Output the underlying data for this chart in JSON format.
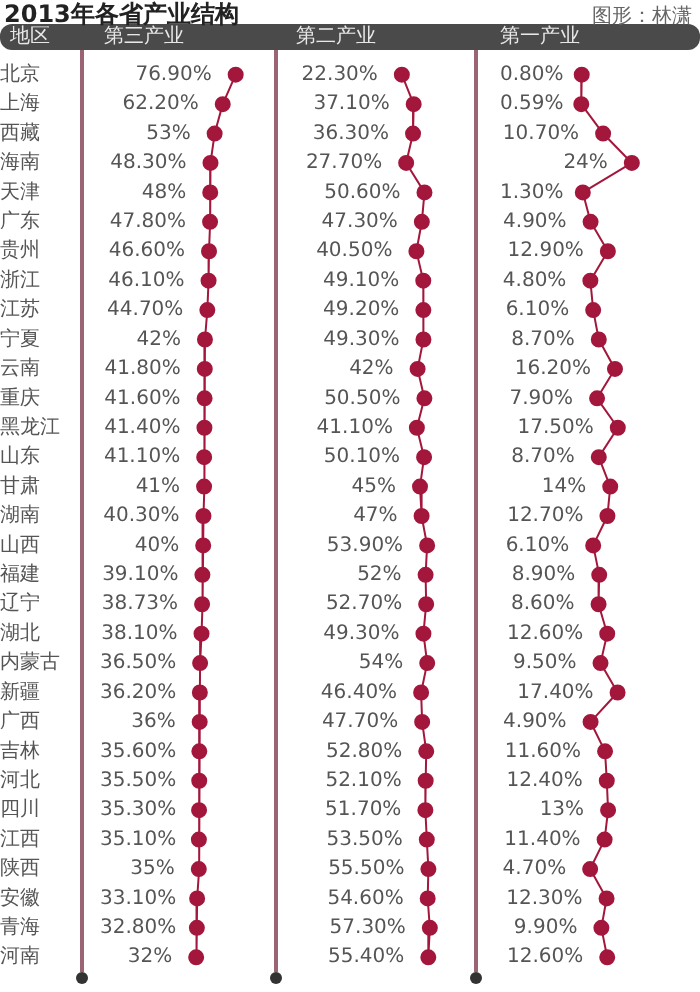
{
  "chart_data": [
    {
      "type": "line",
      "orientation": "horizontal",
      "title": "2013年各省产业结构",
      "ylabel": "地区",
      "xlabel": "第三产业",
      "tick_labels": "y",
      "marker": "circle",
      "color": "#a3173c",
      "categories": [
        "北京",
        "上海",
        "西藏",
        "海南",
        "天津",
        "广东",
        "贵州",
        "浙江",
        "江苏",
        "宁夏",
        "云南",
        "重庆",
        "黑龙江",
        "山东",
        "甘肃",
        "湖南",
        "山西",
        "福建",
        "辽宁",
        "湖北",
        "内蒙古",
        "新疆",
        "广西",
        "吉林",
        "河北",
        "四川",
        "江西",
        "陕西",
        "安徽",
        "青海",
        "河南"
      ],
      "values": [
        76.9,
        62.2,
        53,
        48.3,
        48,
        47.8,
        46.6,
        46.1,
        44.7,
        42,
        41.8,
        41.6,
        41.4,
        41.1,
        41,
        40.3,
        40,
        39.1,
        38.73,
        38.1,
        36.5,
        36.2,
        36,
        35.6,
        35.5,
        35.3,
        35.1,
        35,
        33.1,
        32.8,
        32
      ],
      "value_labels": [
        "76.90%",
        "62.20%",
        "53%",
        "48.30%",
        "48%",
        "47.80%",
        "46.60%",
        "46.10%",
        "44.70%",
        "42%",
        "41.80%",
        "41.60%",
        "41.40%",
        "41.10%",
        "41%",
        "40.30%",
        "40%",
        "39.10%",
        "38.73%",
        "38.10%",
        "36.50%",
        "36.20%",
        "36%",
        "35.60%",
        "35.50%",
        "35.30%",
        "35.10%",
        "35%",
        "33.10%",
        "32.80%",
        "32%"
      ]
    },
    {
      "type": "line",
      "orientation": "horizontal",
      "xlabel": "第二产业",
      "tick_labels": false,
      "marker": "circle",
      "color": "#a3173c",
      "categories": [
        null,
        null,
        null,
        null,
        null,
        null,
        null,
        null,
        null,
        null,
        null,
        null,
        null,
        null,
        null,
        null,
        null,
        null,
        null,
        null,
        null,
        null,
        null,
        null,
        null,
        null,
        null,
        null,
        null,
        null,
        null
      ],
      "values": [
        22.3,
        37.1,
        36.3,
        27.7,
        50.6,
        47.3,
        40.5,
        49.1,
        49.2,
        49.3,
        42,
        50.5,
        41.1,
        50.1,
        45,
        47,
        53.9,
        52,
        52.7,
        49.3,
        54,
        46.4,
        47.7,
        52.8,
        52.1,
        51.7,
        53.5,
        55.5,
        54.6,
        57.3,
        55.4
      ],
      "value_labels": [
        "22.30%",
        "37.10%",
        "36.30%",
        "27.70%",
        "50.60%",
        "47.30%",
        "40.50%",
        "49.10%",
        "49.20%",
        "49.30%",
        "42%",
        "50.50%",
        "41.10%",
        "50.10%",
        "45%",
        "47%",
        "53.90%",
        "52%",
        "52.70%",
        "49.30%",
        "54%",
        "46.40%",
        "47.70%",
        "52.80%",
        "52.10%",
        "51.70%",
        "53.50%",
        "55.50%",
        "54.60%",
        "57.30%",
        "55.40%"
      ]
    },
    {
      "type": "line",
      "orientation": "horizontal",
      "xlabel": "第一产业",
      "tick_labels": false,
      "marker": "circle",
      "color": "#a3173c",
      "annotations": [
        "图形：林潇"
      ],
      "categories": [
        null,
        null,
        null,
        null,
        null,
        null,
        null,
        null,
        null,
        null,
        null,
        null,
        null,
        null,
        null,
        null,
        null,
        null,
        null,
        null,
        null,
        null,
        null,
        null,
        null,
        null,
        null,
        null,
        null,
        null,
        null
      ],
      "values": [
        0.8,
        0.59,
        10.7,
        24,
        1.3,
        4.9,
        12.9,
        4.8,
        6.1,
        8.7,
        16.2,
        7.9,
        17.5,
        8.7,
        14,
        12.7,
        6.1,
        8.9,
        8.6,
        12.6,
        9.5,
        17.4,
        4.9,
        11.6,
        12.4,
        13,
        11.4,
        4.7,
        12.3,
        9.9,
        12.6
      ],
      "value_labels": [
        "0.80%",
        "0.59%",
        "10.70%",
        "24%",
        "1.30%",
        "4.90%",
        "12.90%",
        "4.80%",
        "6.10%",
        "8.70%",
        "16.20%",
        "7.90%",
        "17.50%",
        "8.70%",
        "14%",
        "12.70%",
        "6.10%",
        "8.90%",
        "8.60%",
        "12.60%",
        "9.50%",
        "17.40%",
        "4.90%",
        "11.60%",
        "12.40%",
        "13%",
        "11.40%",
        "4.70%",
        "12.30%",
        "9.90%",
        "12.60%"
      ]
    }
  ]
}
